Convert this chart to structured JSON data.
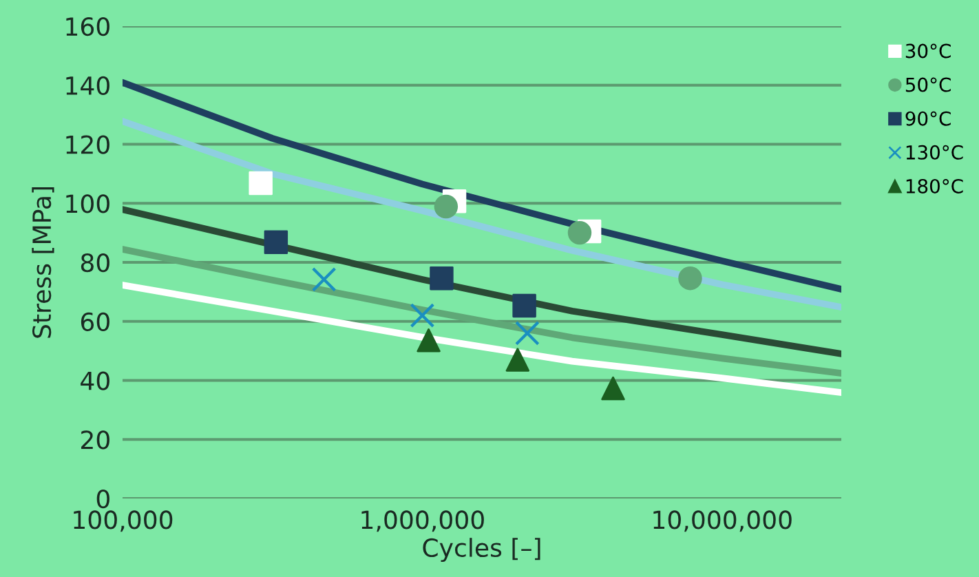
{
  "chart_data": {
    "type": "scatter",
    "xlabel": "Cycles [–]",
    "ylabel": "Stress [MPa]",
    "log": "x",
    "xlim": [
      100000,
      25000000
    ],
    "xticks": [
      {
        "value": 100000,
        "label": "100,000"
      },
      {
        "value": 1000000,
        "label": "1,000,000"
      },
      {
        "value": 10000000,
        "label": "10,000,000"
      }
    ],
    "ylim": [
      0,
      160
    ],
    "yticks": [
      0,
      20,
      40,
      60,
      80,
      100,
      120,
      140,
      160
    ],
    "grid": "y",
    "legend": "top right",
    "series": [
      {
        "type": "line",
        "color": "#1f3f5f",
        "x": [
          100000,
          316000,
          1000000,
          3160000,
          10000000,
          25000000
        ],
        "values": [
          140.9,
          122,
          106.5,
          93,
          80.5,
          70.9
        ]
      },
      {
        "type": "line",
        "color": "#8ecfe0",
        "x": [
          100000,
          316000,
          1000000,
          3160000,
          10000000,
          25000000
        ],
        "values": [
          127.8,
          110,
          97.5,
          84,
          72.5,
          64.8
        ]
      },
      {
        "type": "line",
        "color": "#2a4a35",
        "x": [
          100000,
          316000,
          1000000,
          3160000,
          10000000,
          25000000
        ],
        "values": [
          97.9,
          86,
          74.2,
          63.5,
          55.5,
          49
        ]
      },
      {
        "type": "line",
        "color": "#5fa877",
        "x": [
          100000,
          316000,
          1000000,
          3160000,
          10000000,
          25000000
        ],
        "values": [
          84.4,
          74,
          63.9,
          54.5,
          47.5,
          42.4
        ]
      },
      {
        "type": "line",
        "color": "#ffffff",
        "x": [
          100000,
          316000,
          1000000,
          3160000,
          10000000,
          25000000
        ],
        "values": [
          72.3,
          63.5,
          54.6,
          46.5,
          40.8,
          35.9
        ]
      },
      {
        "name": "30°C",
        "marker": "square",
        "color": "#ffffff",
        "x": [
          289000,
          1280000,
          3610000
        ],
        "values": [
          106.8,
          100.7,
          90.5
        ]
      },
      {
        "name": "50°C",
        "marker": "circle",
        "color": "#5fa877",
        "x": [
          1200000,
          3350000,
          7830000
        ],
        "values": [
          98.9,
          90,
          74.6
        ]
      },
      {
        "name": "90°C",
        "marker": "square",
        "color": "#1f3f5f",
        "x": [
          325000,
          1160000,
          2190000
        ],
        "values": [
          86.8,
          74.6,
          65.3
        ]
      },
      {
        "name": "130°C",
        "marker": "cross",
        "color": "#1a8fc0",
        "x": [
          470000,
          1000000,
          2240000
        ],
        "values": [
          74.2,
          62,
          56
        ]
      },
      {
        "name": "180°C",
        "marker": "triangle",
        "color": "#1b5e20",
        "x": [
          1050000,
          2080000,
          4330000
        ],
        "values": [
          53.6,
          47,
          37.3
        ]
      }
    ]
  }
}
